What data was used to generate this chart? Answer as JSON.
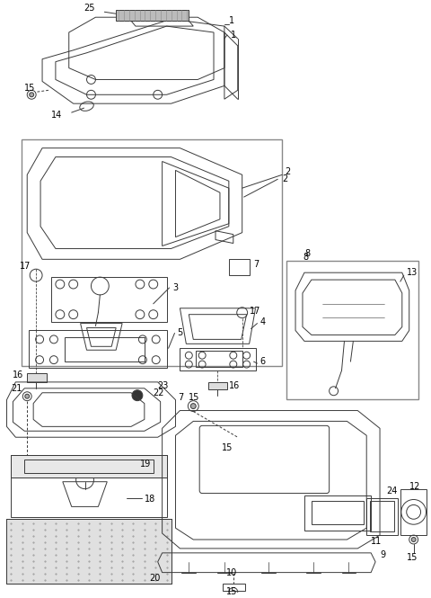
{
  "bg_color": "#ffffff",
  "line_color": "#3a3a3a",
  "label_color": "#000000",
  "fig_w": 4.8,
  "fig_h": 6.65,
  "dpi": 100,
  "lw": 0.7
}
